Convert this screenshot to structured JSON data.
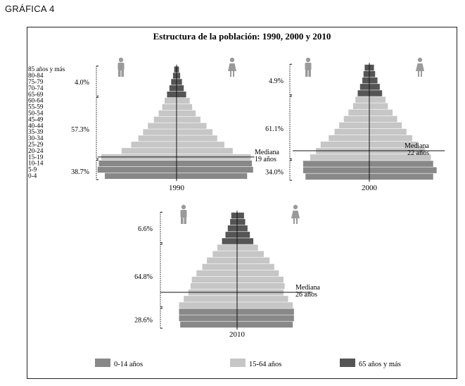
{
  "figure_label": "GRÁFICA 4",
  "colors": {
    "young": "#888888",
    "adult": "#c6c6c6",
    "old": "#555555",
    "axis": "#111111",
    "icon": "#9a9a9a"
  },
  "chart_data": {
    "type": "population-pyramid",
    "title": "Estructura de la población: 1990, 2000 y 2010",
    "age_groups": [
      "0-4",
      "5-9",
      "10-14",
      "15-19",
      "20-24",
      "25-29",
      "30-34",
      "35-39",
      "40-44",
      "45-49",
      "50-54",
      "55-59",
      "60-64",
      "65-69",
      "70-74",
      "75-79",
      "80-84",
      "85 años y más"
    ],
    "legend": [
      {
        "key": "young",
        "label": "0-14 años"
      },
      {
        "key": "adult",
        "label": "15-64 años"
      },
      {
        "key": "old",
        "label": "65 años y más"
      }
    ],
    "panels": [
      {
        "year": "1990",
        "median_label": "Mediana",
        "median_value": "19 años",
        "median_group_index": 3.5,
        "group_pct": {
          "young": "38.7%",
          "adult": "57.3%",
          "old": "4.0%"
        },
        "male": [
          6.0,
          6.6,
          6.5,
          6.3,
          4.6,
          3.8,
          3.2,
          2.8,
          2.4,
          1.9,
          1.5,
          1.2,
          1.0,
          0.8,
          0.6,
          0.45,
          0.3,
          0.2
        ],
        "female": [
          5.9,
          6.4,
          6.3,
          6.2,
          4.7,
          4.0,
          3.4,
          3.0,
          2.5,
          2.0,
          1.6,
          1.3,
          1.1,
          0.8,
          0.6,
          0.45,
          0.3,
          0.2
        ]
      },
      {
        "year": "2000",
        "median_label": "Mediana",
        "median_value": "22 años",
        "median_group_index": 4.5,
        "group_pct": {
          "young": "34.0%",
          "adult": "61.1%",
          "old": "4.9%"
        },
        "male": [
          5.5,
          5.7,
          5.7,
          5.1,
          4.6,
          4.2,
          3.5,
          3.0,
          2.6,
          2.2,
          1.8,
          1.4,
          1.2,
          1.0,
          0.8,
          0.6,
          0.5,
          0.4
        ],
        "female": [
          5.5,
          5.8,
          5.5,
          5.3,
          4.8,
          4.2,
          3.7,
          3.2,
          2.8,
          2.4,
          2.0,
          1.6,
          1.4,
          1.1,
          0.9,
          0.7,
          0.5,
          0.4
        ]
      },
      {
        "year": "2010",
        "median_label": "Mediana",
        "median_value": "26 años",
        "median_group_index": 5.5,
        "group_pct": {
          "young": "28.6%",
          "adult": "64.8%",
          "old": "6.6%"
        },
        "male": [
          4.9,
          5.0,
          5.0,
          5.0,
          4.6,
          4.2,
          4.0,
          3.9,
          3.5,
          3.0,
          2.6,
          2.1,
          1.7,
          1.3,
          1.0,
          0.8,
          0.6,
          0.5
        ],
        "female": [
          4.8,
          4.9,
          4.9,
          4.8,
          4.4,
          4.0,
          4.1,
          4.0,
          3.6,
          3.2,
          2.8,
          2.3,
          1.8,
          1.4,
          1.1,
          0.9,
          0.7,
          0.6
        ]
      }
    ]
  }
}
